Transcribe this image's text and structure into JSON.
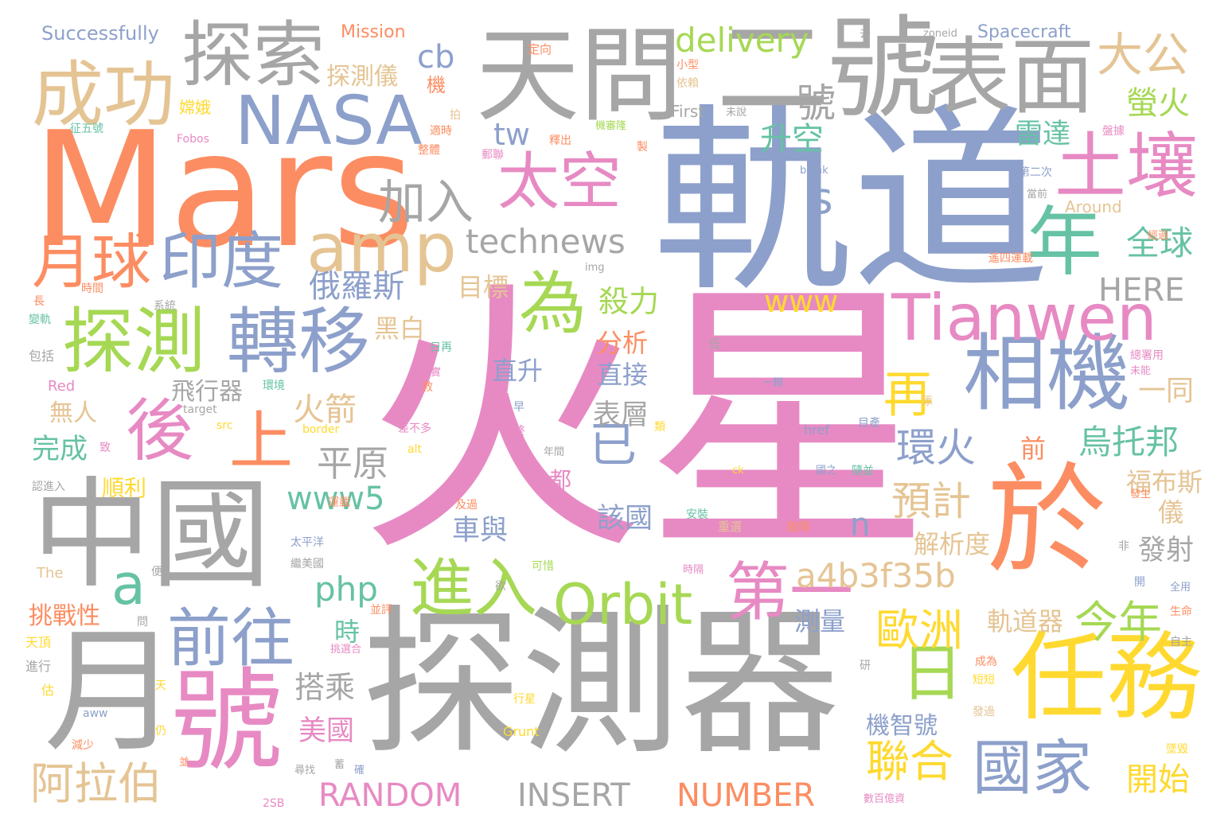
{
  "palette": [
    "#e78ac3",
    "#a6a6a6",
    "#8da0cb",
    "#fc8d62",
    "#66c2a5",
    "#a6d854",
    "#ffd92f",
    "#e5c494"
  ],
  "words": [
    {
      "text": "火星",
      "color": "#e78ac3"
    },
    {
      "text": "軌道",
      "color": "#8da0cb"
    },
    {
      "text": "探測器",
      "color": "#a6a6a6"
    },
    {
      "text": "Mars",
      "color": "#fc8d62"
    },
    {
      "text": "中國",
      "color": "#a6a6a6"
    },
    {
      "text": "天問",
      "color": "#a6a6a6"
    },
    {
      "text": "二號",
      "color": "#a6a6a6"
    },
    {
      "text": "於",
      "color": "#fc8d62"
    },
    {
      "text": "月",
      "color": "#a6a6a6"
    },
    {
      "text": "號",
      "color": "#e78ac3"
    },
    {
      "text": "任務",
      "color": "#ffd92f"
    },
    {
      "text": "表面",
      "color": "#a6a6a6"
    },
    {
      "text": "探索",
      "color": "#a6a6a6"
    },
    {
      "text": "成功",
      "color": "#e5c494"
    },
    {
      "text": "NASA",
      "color": "#8da0cb"
    },
    {
      "text": "土壤",
      "color": "#e78ac3"
    },
    {
      "text": "年",
      "color": "#66c2a5"
    },
    {
      "text": "相機",
      "color": "#8da0cb"
    },
    {
      "text": "探測",
      "color": "#a6d854"
    },
    {
      "text": "轉移",
      "color": "#8da0cb"
    },
    {
      "text": "amp",
      "color": "#e5c494"
    },
    {
      "text": "月球",
      "color": "#fc8d62"
    },
    {
      "text": "印度",
      "color": "#8da0cb"
    },
    {
      "text": "Tianwen",
      "color": "#e78ac3"
    },
    {
      "text": "進入",
      "color": "#a6d854"
    },
    {
      "text": "Orbit",
      "color": "#a6d854"
    },
    {
      "text": "國家",
      "color": "#8da0cb"
    },
    {
      "text": "前往",
      "color": "#8da0cb"
    },
    {
      "text": "為",
      "color": "#a6d854"
    },
    {
      "text": "太空",
      "color": "#e78ac3"
    },
    {
      "text": "後",
      "color": "#e78ac3"
    },
    {
      "text": "上",
      "color": "#fc8d62"
    },
    {
      "text": "第一",
      "color": "#e78ac3"
    },
    {
      "text": "日",
      "color": "#a6d854"
    },
    {
      "text": "再",
      "color": "#ffd92f"
    },
    {
      "text": "a",
      "color": "#66c2a5"
    },
    {
      "text": "加入",
      "color": "#a6a6a6"
    },
    {
      "text": "大公",
      "color": "#e5c494"
    },
    {
      "text": "一號",
      "color": "#a6a6a6"
    },
    {
      "text": "delivery",
      "color": "#a6d854"
    },
    {
      "text": "cb",
      "color": "#8da0cb"
    },
    {
      "text": "technews",
      "color": "#a6a6a6"
    },
    {
      "text": "歐洲",
      "color": "#ffd92f"
    },
    {
      "text": "今年",
      "color": "#a6d854"
    },
    {
      "text": "聯合",
      "color": "#ffd92f"
    },
    {
      "text": "阿拉伯",
      "color": "#e5c494"
    },
    {
      "text": "RANDOM",
      "color": "#e78ac3"
    },
    {
      "text": "INSERT",
      "color": "#a6a6a6"
    },
    {
      "text": "NUMBER",
      "color": "#fc8d62"
    },
    {
      "text": "a4b3f35b",
      "color": "#e5c494"
    },
    {
      "text": "預計",
      "color": "#e5c494"
    },
    {
      "text": "www5",
      "color": "#66c2a5"
    },
    {
      "text": "環火",
      "color": "#8da0cb"
    },
    {
      "text": "烏托邦",
      "color": "#66c2a5"
    },
    {
      "text": "已",
      "color": "#8da0cb"
    },
    {
      "text": "www",
      "color": "#ffd92f"
    },
    {
      "text": "HERE",
      "color": "#a6a6a6"
    },
    {
      "text": "全球",
      "color": "#66c2a5"
    },
    {
      "text": "螢火",
      "color": "#a6d854"
    },
    {
      "text": "雷達",
      "color": "#66c2a5"
    },
    {
      "text": "php",
      "color": "#66c2a5"
    },
    {
      "text": "俄羅斯",
      "color": "#8da0cb"
    },
    {
      "text": "升空",
      "color": "#66c2a5"
    },
    {
      "text": "tw",
      "color": "#8da0cb"
    },
    {
      "text": "s",
      "color": "#8da0cb"
    },
    {
      "text": "平原",
      "color": "#a6a6a6"
    },
    {
      "text": "火箭",
      "color": "#e5c494"
    },
    {
      "text": "探測儀",
      "color": "#e5c494"
    },
    {
      "text": "殺力",
      "color": "#a6d854"
    },
    {
      "text": "目標",
      "color": "#e5c494"
    },
    {
      "text": "黑白",
      "color": "#e5c494"
    },
    {
      "text": "分析",
      "color": "#fc8d62"
    },
    {
      "text": "直升",
      "color": "#8da0cb"
    },
    {
      "text": "直接",
      "color": "#8da0cb"
    },
    {
      "text": "飛行器",
      "color": "#a6a6a6"
    },
    {
      "text": "表層",
      "color": "#a6a6a6"
    },
    {
      "text": "無人",
      "color": "#e5c494"
    },
    {
      "text": "完成",
      "color": "#66c2a5"
    },
    {
      "text": "順利",
      "color": "#ffd92f"
    },
    {
      "text": "車與",
      "color": "#8da0cb"
    },
    {
      "text": "該國",
      "color": "#8da0cb"
    },
    {
      "text": "都",
      "color": "#e78ac3"
    },
    {
      "text": "前",
      "color": "#fc8d62"
    },
    {
      "text": "一同",
      "color": "#e5c494"
    },
    {
      "text": "福布斯",
      "color": "#e5c494"
    },
    {
      "text": "儀",
      "color": "#e5c494"
    },
    {
      "text": "發射",
      "color": "#a6a6a6"
    },
    {
      "text": "解析度",
      "color": "#e5c494"
    },
    {
      "text": "n",
      "color": "#8da0cb"
    },
    {
      "text": "挑戰性",
      "color": "#fc8d62"
    },
    {
      "text": "時",
      "color": "#66c2a5"
    },
    {
      "text": "測量",
      "color": "#8da0cb"
    },
    {
      "text": "軌道器",
      "color": "#e5c494"
    },
    {
      "text": "搭乘",
      "color": "#a6a6a6"
    },
    {
      "text": "美國",
      "color": "#e78ac3"
    },
    {
      "text": "機智號",
      "color": "#8da0cb"
    },
    {
      "text": "開始",
      "color": "#ffd92f"
    },
    {
      "text": "Successfully",
      "color": "#8da0cb"
    },
    {
      "text": "Mission",
      "color": "#fc8d62"
    },
    {
      "text": "Spacecraft",
      "color": "#8da0cb"
    },
    {
      "text": "First",
      "color": "#a6a6a6"
    },
    {
      "text": "Around",
      "color": "#e5c494"
    },
    {
      "text": "Fobos",
      "color": "#e78ac3"
    },
    {
      "text": "Red",
      "color": "#e78ac3"
    },
    {
      "text": "The",
      "color": "#e5c494"
    },
    {
      "text": "Grunt",
      "color": "#ffd92f"
    },
    {
      "text": "target",
      "color": "#a6a6a6"
    },
    {
      "text": "src",
      "color": "#ffd92f"
    },
    {
      "text": "border",
      "color": "#ffd92f"
    },
    {
      "text": "alt",
      "color": "#ffd92f"
    },
    {
      "text": "href",
      "color": "#8da0cb"
    },
    {
      "text": "zoneid",
      "color": "#a6a6a6"
    },
    {
      "text": "blank",
      "color": "#8da0cb"
    },
    {
      "text": "img",
      "color": "#a6a6a6"
    },
    {
      "text": "ck",
      "color": "#ffd92f"
    },
    {
      "text": "aww",
      "color": "#8da0cb"
    },
    {
      "text": "2SB",
      "color": "#e78ac3"
    },
    {
      "text": "機",
      "color": "#fc8d62"
    },
    {
      "text": "定向",
      "color": "#fc8d62"
    },
    {
      "text": "小型",
      "color": "#fc8d62"
    },
    {
      "text": "依賴",
      "color": "#e5c494"
    },
    {
      "text": "嫦娥",
      "color": "#ffd92f"
    },
    {
      "text": "征五號",
      "color": "#66c2a5"
    },
    {
      "text": "系統",
      "color": "#a6a6a6"
    },
    {
      "text": "包括",
      "color": "#a6a6a6"
    },
    {
      "text": "時間",
      "color": "#fc8d62"
    },
    {
      "text": "長",
      "color": "#fc8d62"
    },
    {
      "text": "變軌",
      "color": "#66c2a5"
    },
    {
      "text": "環境",
      "color": "#66c2a5"
    },
    {
      "text": "年間",
      "color": "#a6a6a6"
    },
    {
      "text": "事實",
      "color": "#e78ac3"
    },
    {
      "text": "差不多",
      "color": "#e78ac3"
    },
    {
      "text": "最終",
      "color": "#e78ac3"
    },
    {
      "text": "低",
      "color": "#a6a6a6"
    },
    {
      "text": "一顆",
      "color": "#8da0cb"
    },
    {
      "text": "國之",
      "color": "#8da0cb"
    },
    {
      "text": "太平洋",
      "color": "#8da0cb"
    },
    {
      "text": "運載",
      "color": "#fc8d62"
    },
    {
      "text": "繼美國",
      "color": "#a6a6a6"
    },
    {
      "text": "及過",
      "color": "#fc8d62"
    },
    {
      "text": "可惜",
      "color": "#a6d854"
    },
    {
      "text": "時隔",
      "color": "#e78ac3"
    },
    {
      "text": "重選",
      "color": "#e5c494"
    },
    {
      "text": "故障",
      "color": "#fc8d62"
    },
    {
      "text": "安裝",
      "color": "#66c2a5"
    },
    {
      "text": "天頂",
      "color": "#ffd92f"
    },
    {
      "text": "進行",
      "color": "#a6a6a6"
    },
    {
      "text": "估",
      "color": "#ffd92f"
    },
    {
      "text": "減少",
      "color": "#fc8d62"
    },
    {
      "text": "挑選合",
      "color": "#e78ac3"
    },
    {
      "text": "行星",
      "color": "#ffd92f"
    },
    {
      "text": "尋找",
      "color": "#a6a6a6"
    },
    {
      "text": "研",
      "color": "#a6a6a6"
    },
    {
      "text": "成為",
      "color": "#fc8d62"
    },
    {
      "text": "短短",
      "color": "#ffd92f"
    },
    {
      "text": "發過",
      "color": "#e5c494"
    },
    {
      "text": "墜毀",
      "color": "#ffd92f"
    },
    {
      "text": "數百億資",
      "color": "#e78ac3"
    },
    {
      "text": "生命",
      "color": "#fc8d62"
    },
    {
      "text": "自主",
      "color": "#a6a6a6"
    },
    {
      "text": "全用",
      "color": "#8da0cb"
    },
    {
      "text": "開",
      "color": "#8da0cb"
    },
    {
      "text": "非",
      "color": "#a6a6a6"
    },
    {
      "text": "發生",
      "color": "#fc8d62"
    },
    {
      "text": "總署用",
      "color": "#e78ac3"
    },
    {
      "text": "未能",
      "color": "#e78ac3"
    },
    {
      "text": "經過",
      "color": "#fc8d62"
    },
    {
      "text": "遙四運載",
      "color": "#fc8d62"
    },
    {
      "text": "當前",
      "color": "#a6a6a6"
    },
    {
      "text": "第二次",
      "color": "#8da0cb"
    },
    {
      "text": "盤據",
      "color": "#e78ac3"
    },
    {
      "text": "機審隆",
      "color": "#a6d854"
    },
    {
      "text": "釋出",
      "color": "#fc8d62"
    },
    {
      "text": "整體",
      "color": "#fc8d62"
    },
    {
      "text": "適時",
      "color": "#fc8d62"
    },
    {
      "text": "郵聯",
      "color": "#e78ac3"
    },
    {
      "text": "製",
      "color": "#fc8d62"
    },
    {
      "text": "去",
      "color": "#a6a6a6"
    },
    {
      "text": "未說",
      "color": "#a6a6a6"
    },
    {
      "text": "添",
      "color": "#e5c494"
    },
    {
      "text": "拍",
      "color": "#e5c494"
    },
    {
      "text": "認進入",
      "color": "#a6a6a6"
    },
    {
      "text": "日再",
      "color": "#66c2a5"
    },
    {
      "text": "救",
      "color": "#fc8d62"
    },
    {
      "text": "早",
      "color": "#8da0cb"
    },
    {
      "text": "類",
      "color": "#ffd92f"
    },
    {
      "text": "欲",
      "color": "#a6a6a6"
    },
    {
      "text": "仍",
      "color": "#ffd92f"
    },
    {
      "text": "天",
      "color": "#ffd92f"
    },
    {
      "text": "便",
      "color": "#a6a6a6"
    },
    {
      "text": "問",
      "color": "#a6a6a6"
    },
    {
      "text": "並",
      "color": "#fc8d62"
    },
    {
      "text": "蓄",
      "color": "#a6a6a6"
    },
    {
      "text": "確",
      "color": "#8da0cb"
    },
    {
      "text": "致",
      "color": "#e78ac3"
    },
    {
      "text": "目產",
      "color": "#8da0cb"
    },
    {
      "text": "隨並",
      "color": "#66c2a5"
    },
    {
      "text": "並評",
      "color": "#fc8d62"
    }
  ]
}
